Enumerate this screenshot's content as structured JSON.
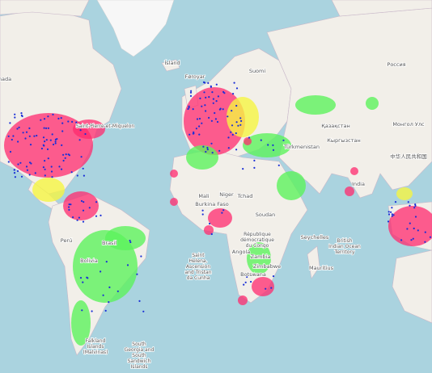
{
  "map": {
    "labels": {
      "canada": "nada",
      "iceland": "Ísland",
      "faroe": "Føroyar",
      "finland": "Suomi",
      "russia": "Россия",
      "kazakhstan": "Қазақстан",
      "mongolia": "Монгол Улс",
      "china": "中华人民共和国",
      "turkmenistan": "Türkmenistan",
      "kyrgyzstan": "Кыргызстан",
      "india": "India",
      "mali": "Mali",
      "niger": "Niger",
      "chad": "Tchad",
      "sudan": "Soudan",
      "burkina": "Burkina Faso",
      "drc": "République démocratique du Congo",
      "angola": "Angola",
      "zambia": "Zambia",
      "zimbabwe": "Zimbabwe",
      "botswana": "Botswana",
      "seychelles": "Seychelles",
      "mauritius": "Mauritius",
      "biot": "British Indian Ocean Territory",
      "st_helena": "Saint Helena, Ascension and Tristan da Cunha",
      "brazil": "Brasil",
      "bolivia": "Bolivia",
      "peru": "Perú",
      "falklands": "Falkland Islands (Malvinas)",
      "south_georgia": "South Georgia and South Sandwich Islands",
      "st_pierre": "Saint-Pierre-et-Miquelon"
    }
  }
}
